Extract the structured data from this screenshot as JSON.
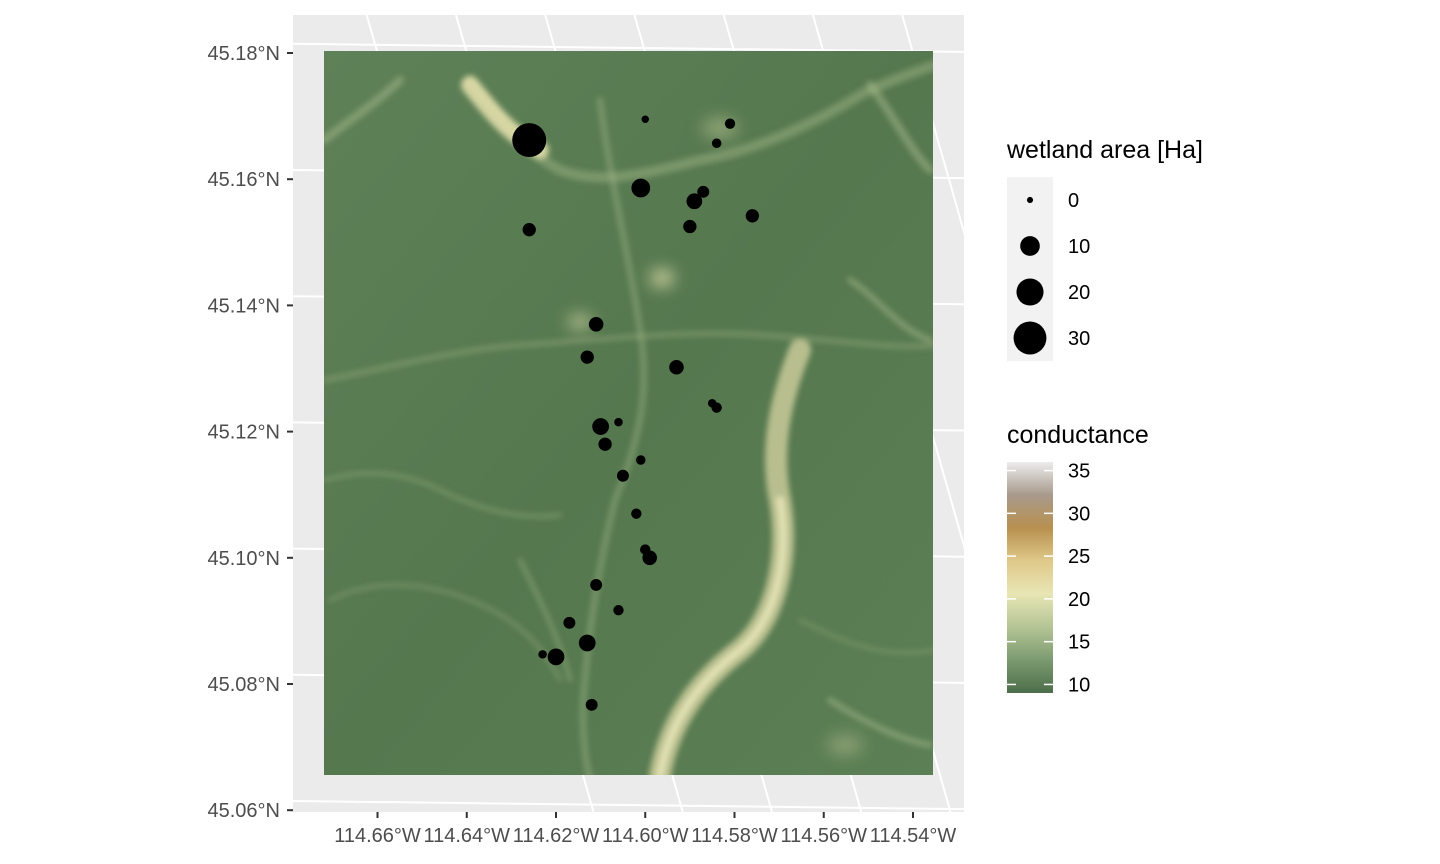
{
  "map": {
    "x_axis": {
      "ticks": [
        {
          "value": -114.66,
          "label": "114.66°W"
        },
        {
          "value": -114.64,
          "label": "114.64°W"
        },
        {
          "value": -114.62,
          "label": "114.62°W"
        },
        {
          "value": -114.6,
          "label": "114.60°W"
        },
        {
          "value": -114.58,
          "label": "114.58°W"
        },
        {
          "value": -114.56,
          "label": "114.56°W"
        },
        {
          "value": -114.54,
          "label": "114.54°W"
        }
      ]
    },
    "y_axis": {
      "ticks": [
        {
          "value": 45.18,
          "label": "45.18°N"
        },
        {
          "value": 45.16,
          "label": "45.16°N"
        },
        {
          "value": 45.14,
          "label": "45.14°N"
        },
        {
          "value": 45.12,
          "label": "45.12°N"
        },
        {
          "value": 45.1,
          "label": "45.10°N"
        },
        {
          "value": 45.08,
          "label": "45.08°N"
        },
        {
          "value": 45.06,
          "label": "45.06°N"
        }
      ]
    },
    "colors": {
      "panel_background": "#ebebeb",
      "gridline": "#ffffff",
      "raster_low": "#4d6e4a",
      "raster_mid": "#e6e3b0",
      "point": "#000000"
    }
  },
  "chart_data": {
    "type": "scatter",
    "raster_layer": {
      "name": "conductance",
      "range": [
        9,
        36
      ]
    },
    "points": [
      {
        "lon": -114.626,
        "lat": 45.1662,
        "area": 32
      },
      {
        "lon": -114.6,
        "lat": 45.1695,
        "area": 0.5
      },
      {
        "lon": -114.581,
        "lat": 45.1688,
        "area": 2
      },
      {
        "lon": -114.584,
        "lat": 45.1657,
        "area": 1.5
      },
      {
        "lon": -114.601,
        "lat": 45.1586,
        "area": 9
      },
      {
        "lon": -114.587,
        "lat": 45.158,
        "area": 3
      },
      {
        "lon": -114.589,
        "lat": 45.1565,
        "area": 6
      },
      {
        "lon": -114.576,
        "lat": 45.1542,
        "area": 4
      },
      {
        "lon": -114.59,
        "lat": 45.1525,
        "area": 4
      },
      {
        "lon": -114.626,
        "lat": 45.152,
        "area": 4
      },
      {
        "lon": -114.611,
        "lat": 45.137,
        "area": 5
      },
      {
        "lon": -114.613,
        "lat": 45.1318,
        "area": 4
      },
      {
        "lon": -114.593,
        "lat": 45.1302,
        "area": 5
      },
      {
        "lon": -114.585,
        "lat": 45.1245,
        "area": 1
      },
      {
        "lon": -114.584,
        "lat": 45.1238,
        "area": 2
      },
      {
        "lon": -114.606,
        "lat": 45.1215,
        "area": 1
      },
      {
        "lon": -114.61,
        "lat": 45.1208,
        "area": 7
      },
      {
        "lon": -114.609,
        "lat": 45.118,
        "area": 4
      },
      {
        "lon": -114.601,
        "lat": 45.1155,
        "area": 1.5
      },
      {
        "lon": -114.605,
        "lat": 45.113,
        "area": 3
      },
      {
        "lon": -114.602,
        "lat": 45.107,
        "area": 2
      },
      {
        "lon": -114.6,
        "lat": 45.1013,
        "area": 2
      },
      {
        "lon": -114.599,
        "lat": 45.1,
        "area": 5
      },
      {
        "lon": -114.611,
        "lat": 45.0957,
        "area": 3
      },
      {
        "lon": -114.606,
        "lat": 45.0917,
        "area": 2
      },
      {
        "lon": -114.617,
        "lat": 45.0897,
        "area": 3
      },
      {
        "lon": -114.613,
        "lat": 45.0865,
        "area": 7
      },
      {
        "lon": -114.623,
        "lat": 45.0847,
        "area": 1
      },
      {
        "lon": -114.62,
        "lat": 45.0843,
        "area": 7
      },
      {
        "lon": -114.612,
        "lat": 45.0767,
        "area": 3
      }
    ],
    "legends": [
      {
        "title": "wetland area [Ha]",
        "type": "size",
        "entries": [
          {
            "value": 0,
            "label": "0"
          },
          {
            "value": 10,
            "label": "10"
          },
          {
            "value": 20,
            "label": "20"
          },
          {
            "value": 30,
            "label": "30"
          }
        ]
      },
      {
        "title": "conductance",
        "type": "colorbar",
        "range": [
          9,
          36
        ],
        "ticks": [
          {
            "value": 35,
            "label": "35"
          },
          {
            "value": 30,
            "label": "30"
          },
          {
            "value": 25,
            "label": "25"
          },
          {
            "value": 20,
            "label": "20"
          },
          {
            "value": 15,
            "label": "15"
          },
          {
            "value": 10,
            "label": "10"
          }
        ],
        "colors": [
          "#4d6e4a",
          "#7c9a70",
          "#b4c595",
          "#e8e6b4",
          "#dfc98a",
          "#b8904f",
          "#a89a8c",
          "#ececec"
        ]
      }
    ]
  }
}
